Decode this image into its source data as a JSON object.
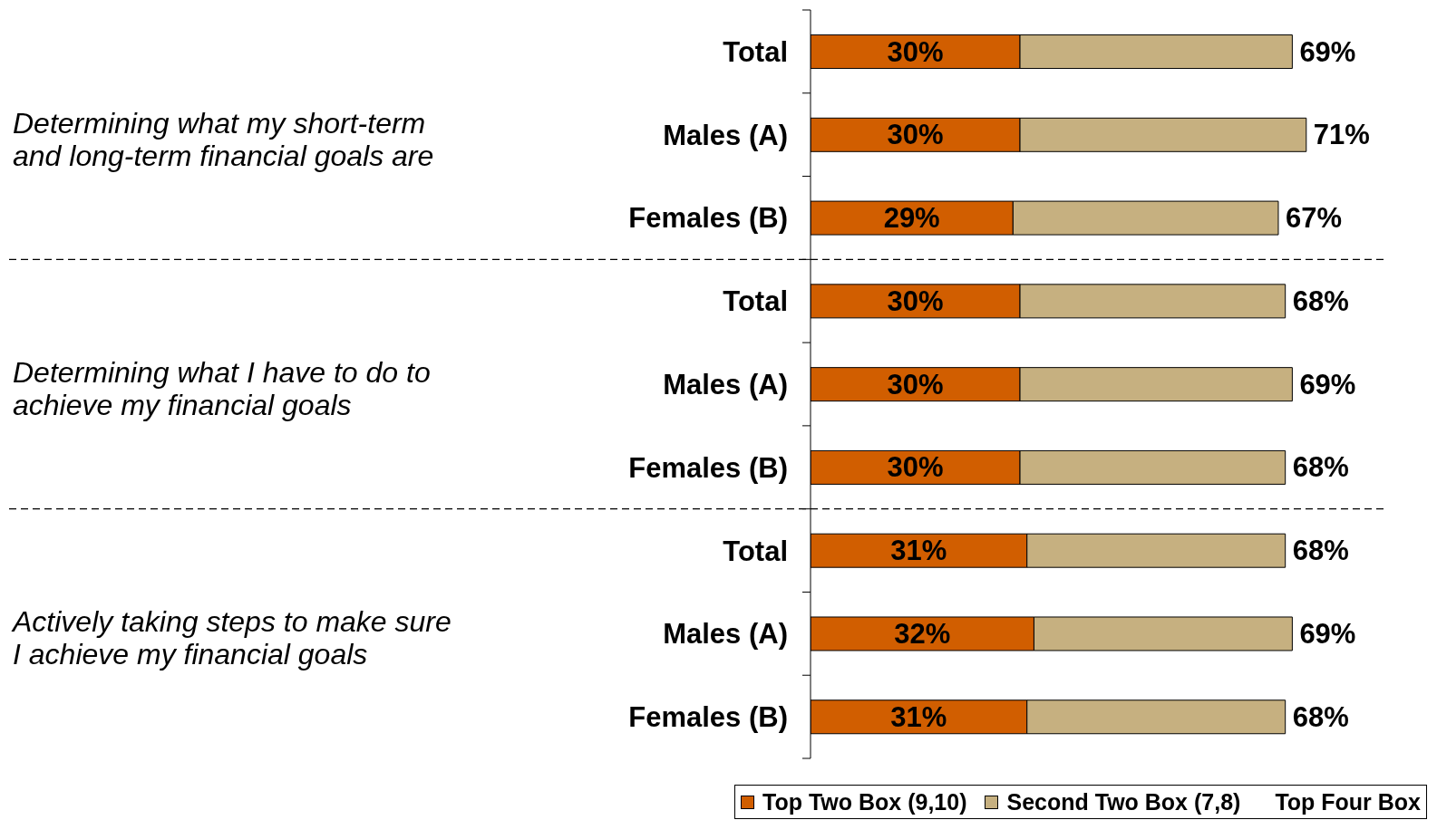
{
  "chart_data": {
    "type": "bar",
    "orientation": "horizontal",
    "stacked": true,
    "categories": [
      "Total",
      "Males (A)",
      "Females (B)",
      "Total",
      "Males (A)",
      "Females (B)",
      "Total",
      "Males (A)",
      "Females (B)"
    ],
    "series": [
      {
        "name": "Top Two Box (9,10)",
        "color": "#d15e00",
        "values": [
          30,
          30,
          29,
          30,
          30,
          30,
          31,
          32,
          31
        ],
        "value_labels": [
          "30%",
          "30%",
          "29%",
          "30%",
          "30%",
          "30%",
          "31%",
          "32%",
          "31%"
        ]
      },
      {
        "name": "Second Two Box (7,8)",
        "color": "#c6b080",
        "values": [
          39,
          41,
          38,
          38,
          39,
          38,
          37,
          37,
          37
        ]
      }
    ],
    "totals": [
      "69%",
      "71%",
      "67%",
      "68%",
      "69%",
      "68%",
      "68%",
      "69%",
      "68%"
    ],
    "annotations": [
      "Determining what my short-term and long-term financial goals are",
      "Determining what I have to do to achieve my financial goals",
      "Actively taking steps to make sure I achieve my financial goals",
      "Top Four Box"
    ],
    "legend": "bottom"
  }
}
